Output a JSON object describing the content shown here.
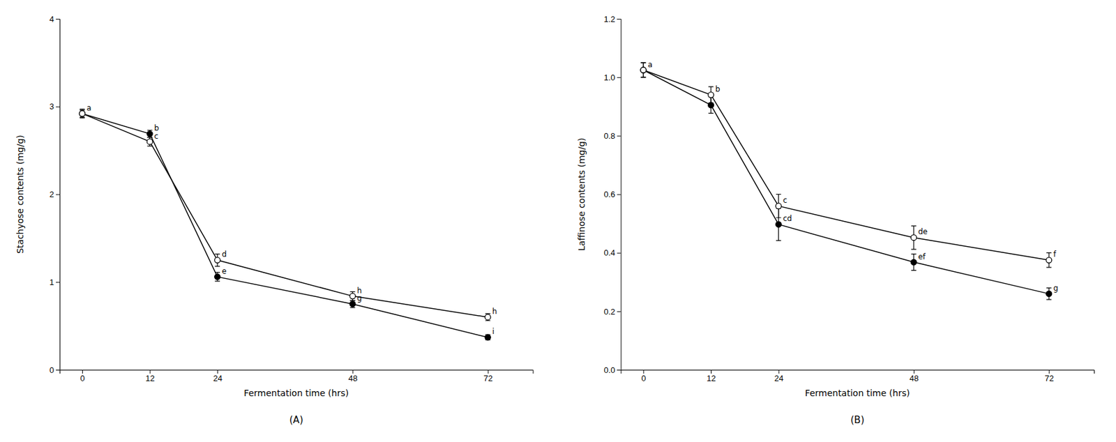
{
  "chart_data": [
    {
      "type": "line",
      "title": "(A)",
      "xlabel": "Fermentation time (hrs)",
      "ylabel": "Stachyose contents (mg/g)",
      "x": [
        0,
        12,
        24,
        48,
        72
      ],
      "series": [
        {
          "values": [
            2.92,
            2.69,
            1.06,
            0.75,
            0.37
          ],
          "errors": [
            0.04,
            0.04,
            0.05,
            0.04,
            0.03
          ],
          "labels": [
            null,
            "b",
            "e",
            "g",
            "i"
          ],
          "color": "black",
          "marker": "circle",
          "line_style": "solid"
        },
        {
          "values": [
            2.92,
            2.6,
            1.25,
            0.84,
            0.6
          ],
          "errors": [
            0.05,
            0.05,
            0.07,
            0.05,
            0.04
          ],
          "labels": [
            "a",
            "c",
            "d",
            "h",
            "h"
          ],
          "color": "black",
          "marker": "circle-open",
          "line_style": "solid"
        }
      ],
      "xlim": [
        -4,
        80
      ],
      "xticks": [
        0,
        12,
        24,
        48,
        72
      ],
      "ylim": [
        0,
        4
      ],
      "yticks": [
        0,
        1,
        2,
        3,
        4
      ],
      "grid": false
    },
    {
      "type": "line",
      "title": "(B)",
      "xlabel": "Fermentation time (hrs)",
      "ylabel": "Laffinose contents (mg/g)",
      "x": [
        0,
        12,
        24,
        48,
        72
      ],
      "series": [
        {
          "values": [
            1.025,
            0.905,
            0.497,
            0.368,
            0.26
          ],
          "errors": [
            0.025,
            0.028,
            0.055,
            0.028,
            0.02
          ],
          "labels": [
            null,
            null,
            "cd",
            "ef",
            "g"
          ],
          "color": "black",
          "marker": "circle",
          "line_style": "solid"
        },
        {
          "values": [
            1.025,
            0.94,
            0.56,
            0.452,
            0.375
          ],
          "errors": [
            0.025,
            0.028,
            0.04,
            0.04,
            0.025
          ],
          "labels": [
            "a",
            "b",
            "c",
            "de",
            "f"
          ],
          "color": "black",
          "marker": "circle-open",
          "line_style": "solid"
        }
      ],
      "xlim": [
        -4,
        80
      ],
      "xticks": [
        0,
        12,
        24,
        48,
        72
      ],
      "ylim": [
        0.0,
        1.2
      ],
      "yticks": [
        {
          "value": 0.0,
          "label": "0.0"
        },
        0.2,
        0.4,
        0.6,
        0.8,
        {
          "value": 1.0,
          "label": "1.0"
        },
        1.2
      ],
      "grid": false
    }
  ]
}
